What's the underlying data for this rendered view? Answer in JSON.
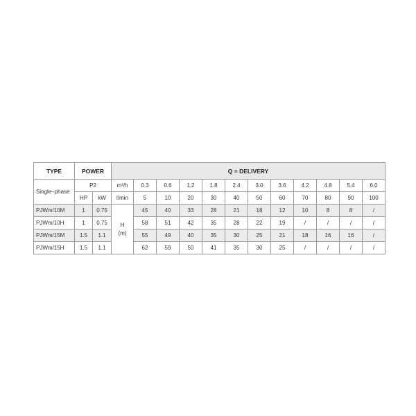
{
  "header": {
    "type": "TYPE",
    "power": "POWER",
    "delivery": "Q = DELIVERY"
  },
  "sub": {
    "phase": "Single–phase",
    "p2": "P2",
    "hp": "HP",
    "kw": "kW",
    "unit_q": "m³/h",
    "unit_l": "l/min",
    "h": "H",
    "m": "(m)"
  },
  "q_m3h": [
    "0.3",
    "0.6",
    "1.2",
    "1.8",
    "2.4",
    "3.0",
    "3.6",
    "4.2",
    "4.8",
    "5.4",
    "6.0"
  ],
  "q_lmin": [
    "5",
    "10",
    "20",
    "30",
    "40",
    "50",
    "60",
    "70",
    "80",
    "90",
    "100"
  ],
  "rows": [
    {
      "model": "PJWm/10M",
      "hp": "1",
      "kw": "0.75",
      "h": [
        "45",
        "40",
        "33",
        "28",
        "21",
        "18",
        "12",
        "10",
        "8",
        "8",
        "/"
      ]
    },
    {
      "model": "PJWm/10H",
      "hp": "1",
      "kw": "0.75",
      "h": [
        "58",
        "51",
        "42",
        "35",
        "28",
        "22",
        "19",
        "/",
        "/",
        "/",
        "/"
      ]
    },
    {
      "model": "PJWm/15M",
      "hp": "1.5",
      "kw": "1.1",
      "h": [
        "55",
        "49",
        "40",
        "35",
        "30",
        "25",
        "21",
        "18",
        "16",
        "16",
        "/"
      ]
    },
    {
      "model": "PJWm/15H",
      "hp": "1.5",
      "kw": "1.1",
      "h": [
        "62",
        "59",
        "50",
        "41",
        "35",
        "30",
        "25",
        "/",
        "/",
        "/",
        "/"
      ]
    }
  ]
}
